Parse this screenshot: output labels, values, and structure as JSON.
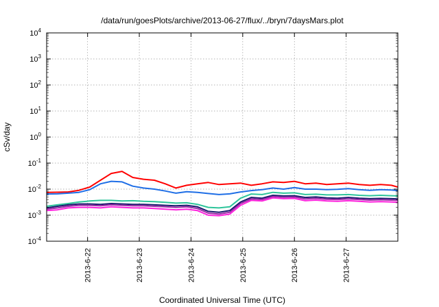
{
  "chart_data": {
    "type": "line",
    "title": "/data/run/goesPlots/archive/2013-06-27/flux/../bryn/7daysMars.plot",
    "xlabel": "Coordinated Universal Time (UTC)",
    "ylabel": "cSv/day",
    "yscale": "log",
    "ylim": [
      0.0001,
      10000
    ],
    "xlim": [
      "2013-06-21 05:00",
      "2013-06-28 00:00"
    ],
    "ytick_labels": [
      {
        "base": "10",
        "exp": "-4"
      },
      {
        "base": "10",
        "exp": "-3"
      },
      {
        "base": "10",
        "exp": "-2"
      },
      {
        "base": "10",
        "exp": "-1"
      },
      {
        "base": "10",
        "exp": "0"
      },
      {
        "base": "10",
        "exp": "1"
      },
      {
        "base": "10",
        "exp": "2"
      },
      {
        "base": "10",
        "exp": "3"
      },
      {
        "base": "10",
        "exp": "4"
      }
    ],
    "xtick_labels": [
      "2013-6-22",
      "2013-6-23",
      "2013-6-24",
      "2013-6-25",
      "2013-6-26",
      "2013-6-27"
    ],
    "grid": true,
    "legend": "none",
    "x": [
      "2013-06-21 05:00",
      "2013-06-21 10:00",
      "2013-06-21 15:00",
      "2013-06-21 20:00",
      "2013-06-22 01:00",
      "2013-06-22 06:00",
      "2013-06-22 11:00",
      "2013-06-22 16:00",
      "2013-06-22 21:00",
      "2013-06-23 02:00",
      "2013-06-23 07:00",
      "2013-06-23 12:00",
      "2013-06-23 17:00",
      "2013-06-23 22:00",
      "2013-06-24 03:00",
      "2013-06-24 08:00",
      "2013-06-24 13:00",
      "2013-06-24 18:00",
      "2013-06-24 23:00",
      "2013-06-25 04:00",
      "2013-06-25 09:00",
      "2013-06-25 14:00",
      "2013-06-25 19:00",
      "2013-06-26 00:00",
      "2013-06-26 05:00",
      "2013-06-26 10:00",
      "2013-06-26 15:00",
      "2013-06-26 20:00",
      "2013-06-27 01:00",
      "2013-06-27 06:00",
      "2013-06-27 11:00",
      "2013-06-27 16:00",
      "2013-06-27 21:00",
      "2013-06-28 00:00"
    ],
    "series": [
      {
        "color": "#ff0000",
        "values": [
          0.0075,
          0.0076,
          0.0078,
          0.009,
          0.012,
          0.022,
          0.04,
          0.048,
          0.028,
          0.024,
          0.022,
          0.016,
          0.011,
          0.014,
          0.016,
          0.018,
          0.015,
          0.016,
          0.017,
          0.014,
          0.016,
          0.019,
          0.018,
          0.02,
          0.016,
          0.017,
          0.015,
          0.016,
          0.017,
          0.015,
          0.014,
          0.015,
          0.014,
          0.012
        ]
      },
      {
        "color": "#1e6ee6",
        "values": [
          0.0065,
          0.0066,
          0.007,
          0.0075,
          0.0095,
          0.016,
          0.02,
          0.019,
          0.013,
          0.011,
          0.01,
          0.0085,
          0.007,
          0.008,
          0.0075,
          0.0068,
          0.0062,
          0.0066,
          0.0078,
          0.0088,
          0.0095,
          0.011,
          0.01,
          0.0115,
          0.01,
          0.01,
          0.0095,
          0.0098,
          0.0105,
          0.0095,
          0.009,
          0.0095,
          0.0093,
          0.0088
        ]
      },
      {
        "color": "#2dc49a",
        "values": [
          0.0022,
          0.0025,
          0.0028,
          0.0032,
          0.0035,
          0.0037,
          0.0037,
          0.0035,
          0.0036,
          0.0034,
          0.0033,
          0.0031,
          0.0029,
          0.003,
          0.0026,
          0.002,
          0.0019,
          0.0021,
          0.0045,
          0.0065,
          0.0062,
          0.0075,
          0.007,
          0.0072,
          0.0062,
          0.0064,
          0.006,
          0.006,
          0.0062,
          0.0058,
          0.0056,
          0.0058,
          0.0056,
          0.0055
        ]
      },
      {
        "color": "#1a1a6e",
        "values": [
          0.0019,
          0.0022,
          0.0025,
          0.0027,
          0.0027,
          0.0026,
          0.0028,
          0.0027,
          0.0026,
          0.0026,
          0.0025,
          0.0024,
          0.0023,
          0.0024,
          0.0021,
          0.0014,
          0.0013,
          0.0015,
          0.0032,
          0.0048,
          0.0045,
          0.0058,
          0.0055,
          0.0056,
          0.0048,
          0.005,
          0.0046,
          0.0045,
          0.0048,
          0.0045,
          0.0043,
          0.0044,
          0.0043,
          0.0042
        ]
      },
      {
        "color": "#9b2aa6",
        "values": [
          0.0017,
          0.0019,
          0.0022,
          0.0024,
          0.0024,
          0.0023,
          0.0025,
          0.0024,
          0.0023,
          0.0023,
          0.0022,
          0.0021,
          0.002,
          0.0021,
          0.0018,
          0.0012,
          0.0011,
          0.0013,
          0.0028,
          0.0042,
          0.004,
          0.0052,
          0.0049,
          0.005,
          0.0042,
          0.0044,
          0.0041,
          0.004,
          0.0042,
          0.004,
          0.0038,
          0.0039,
          0.0038,
          0.0037
        ]
      },
      {
        "color": "#ff22dd",
        "values": [
          0.0015,
          0.0016,
          0.0019,
          0.002,
          0.002,
          0.0019,
          0.0021,
          0.002,
          0.0019,
          0.0019,
          0.0018,
          0.0017,
          0.0016,
          0.0017,
          0.0015,
          0.001,
          0.00095,
          0.0011,
          0.0024,
          0.0037,
          0.0035,
          0.0046,
          0.0043,
          0.0044,
          0.0036,
          0.0038,
          0.0035,
          0.0034,
          0.0036,
          0.0034,
          0.0032,
          0.0033,
          0.0032,
          0.0031
        ]
      }
    ]
  }
}
